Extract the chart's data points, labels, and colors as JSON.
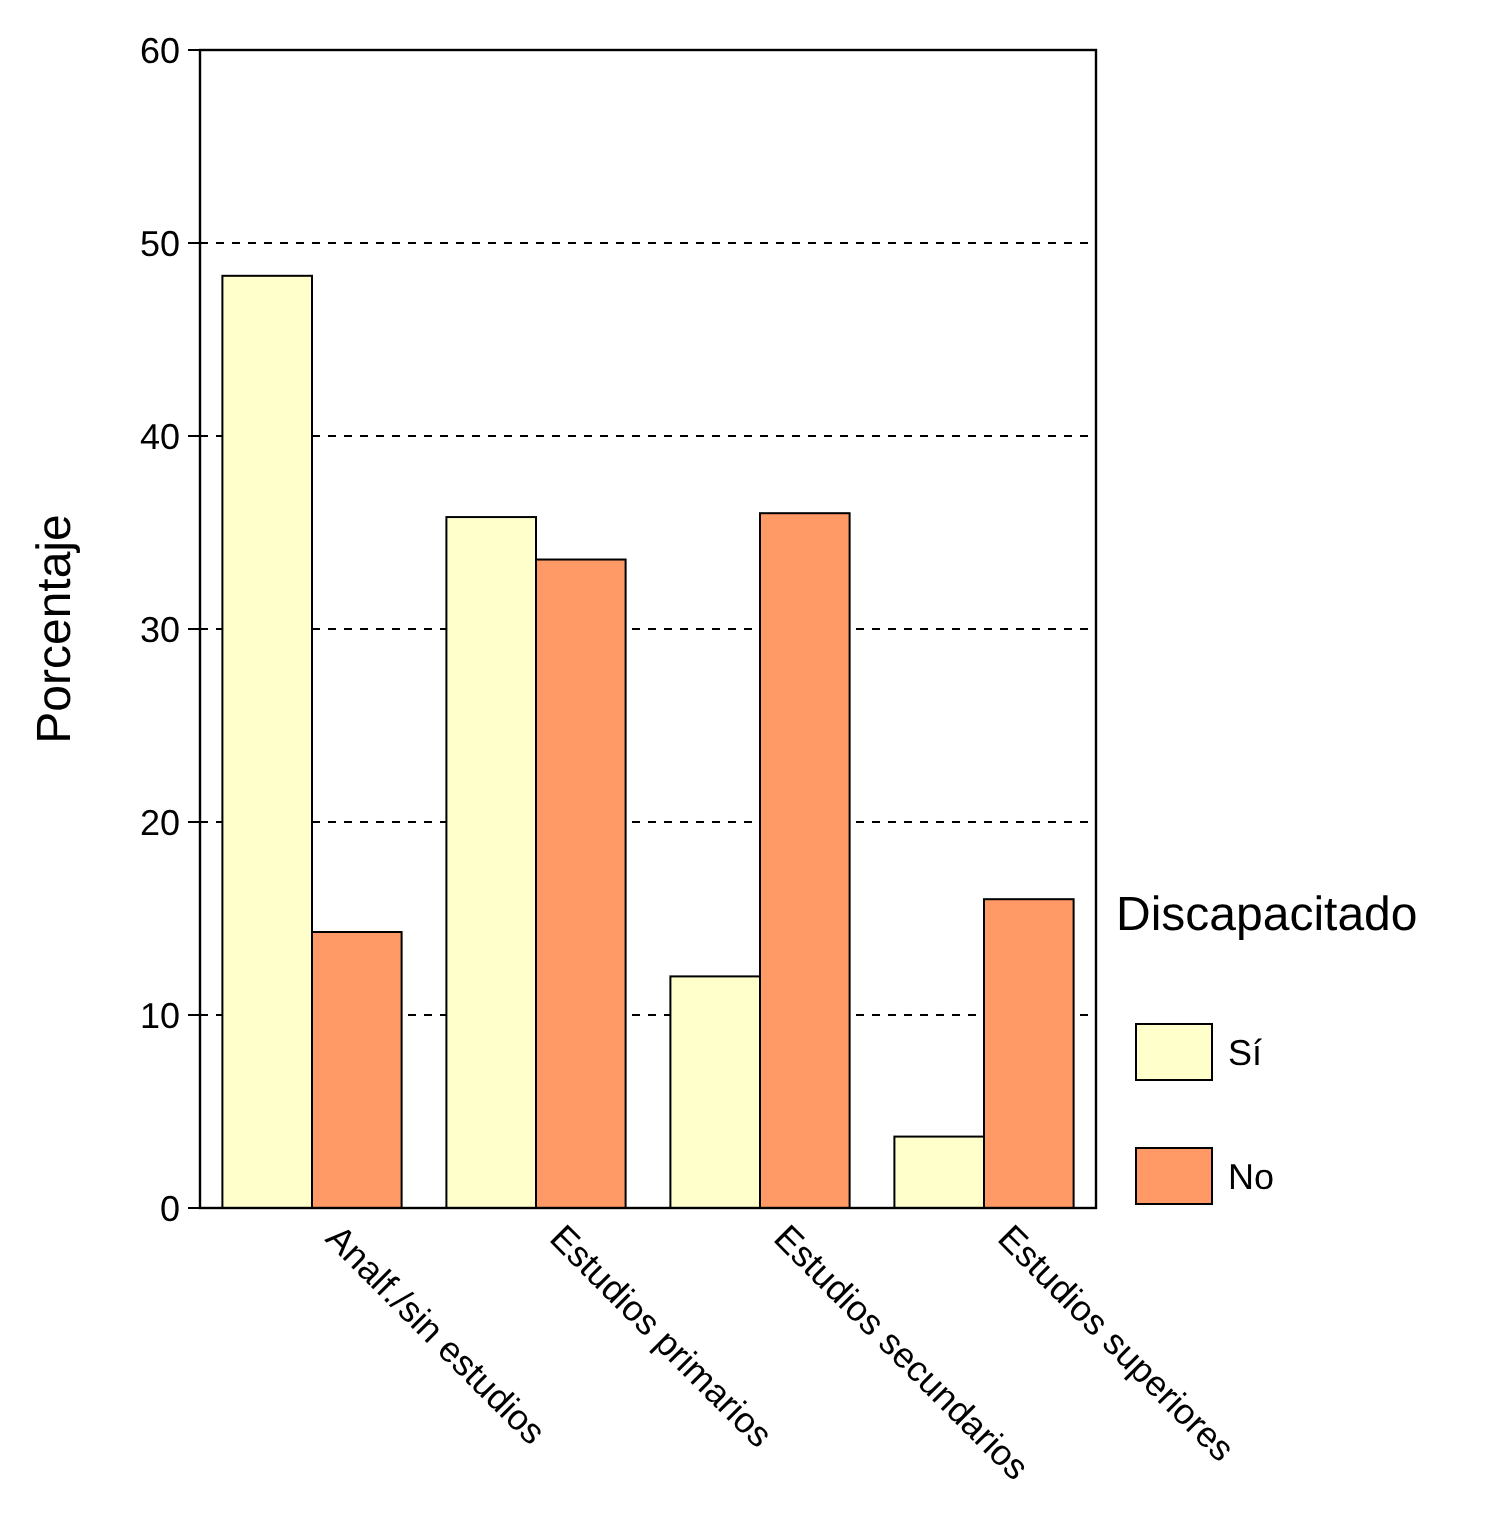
{
  "chart_data": {
    "type": "bar",
    "ylabel": "Porcentaje",
    "legend_title": "Discapacitado",
    "categories": [
      "Analf./sin estudios",
      "Estudios primarios",
      "Estudios secundarios",
      "Estudios superiores"
    ],
    "series": [
      {
        "name": "Sí",
        "color": "#ffffcc",
        "values": [
          48.3,
          35.8,
          12.0,
          3.7
        ]
      },
      {
        "name": "No",
        "color": "#ff9966",
        "values": [
          14.3,
          33.6,
          36.0,
          16.0
        ]
      }
    ],
    "ylim": [
      0,
      60
    ],
    "yticks": [
      0,
      10,
      20,
      30,
      40,
      50,
      60
    ],
    "grid": "y",
    "legend": "right"
  }
}
